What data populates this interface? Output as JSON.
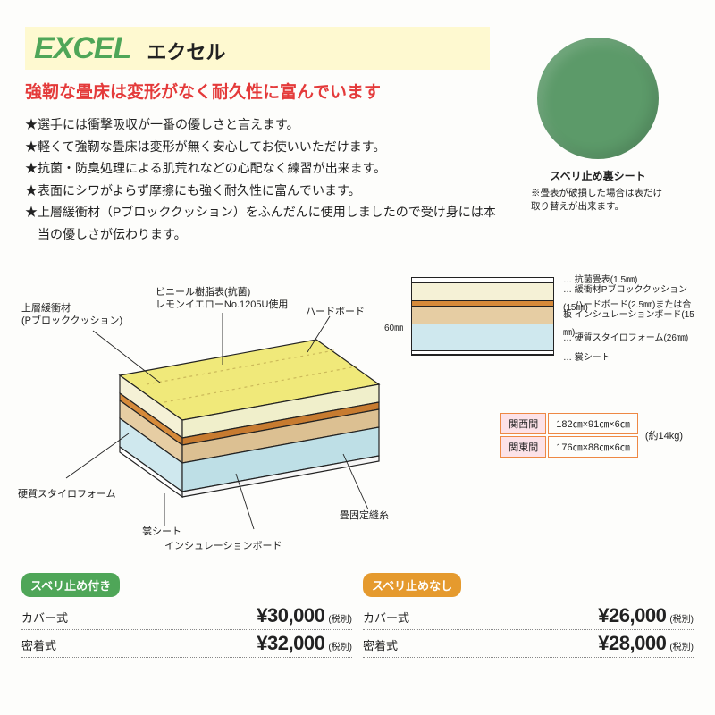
{
  "title": {
    "en": "EXCEL",
    "jp": "エクセル"
  },
  "headline": "強靭な畳床は変形がなく耐久性に富んでいます",
  "bullets": [
    "★選手には衝撃吸収が一番の優しさと言えます。",
    "★軽くて強靭な畳床は変形が無く安心してお使いいただけます。",
    "★抗菌・防臭処理による肌荒れなどの心配なく練習が出来ます。",
    "★表面にシワがよらず摩擦にも強く耐久性に富んでいます。",
    "★上層緩衝材（Pブロッククッション）をふんだんに使用しましたので受け身には本当の優しさが伝わります。"
  ],
  "swatch": {
    "label": "スベリ止め裏シート",
    "note": "※畳表が破損した場合は表だけ取り替えが出来ます。",
    "color": "#5c9a69"
  },
  "cutaway": {
    "labels": {
      "top_layer": "上層緩衝材\n(Pブロッククッション)",
      "vinyl": "ビニール樹脂表(抗菌)\nレモンイエローNo.1205U使用",
      "hardboard": "ハードボード",
      "styro": "硬質スタイロフォーム",
      "back": "裳シート",
      "insul": "インシュレーションボード",
      "thread": "畳固定縫糸"
    },
    "colors": {
      "surface": "#f0e97a",
      "cushion": "#f5f1d6",
      "hard": "#d68a3a",
      "insul": "#e6cda3",
      "styro": "#cfe8ee",
      "back": "#ffffff",
      "outline": "#222"
    }
  },
  "layerbox": {
    "height_label": "60㎜",
    "rows": [
      {
        "h": 6,
        "color": "#ffffff",
        "label": "抗菌畳表(1.5㎜)"
      },
      {
        "h": 20,
        "color": "#f5f1d6",
        "label": "緩衝材Pブロッククッション(15㎜)"
      },
      {
        "h": 6,
        "color": "#d68a3a",
        "label": "ハードボード(2.5㎜)または合板"
      },
      {
        "h": 20,
        "color": "#e6cda3",
        "label": "インシュレーションボード(15㎜)"
      },
      {
        "h": 30,
        "color": "#cfe8ee",
        "label": "硬質スタイロフォーム(26㎜)"
      },
      {
        "h": 4,
        "color": "#ffffff",
        "label": "裳シート"
      }
    ]
  },
  "sizes": {
    "kansai": {
      "name": "関西間",
      "spec": "182㎝×91㎝×6㎝"
    },
    "kanto": {
      "name": "関東間",
      "spec": "176㎝×88㎝×6㎝"
    },
    "weight": "(約14kg)"
  },
  "pricing": {
    "tax_note": "(税別)",
    "with": {
      "header": "スベリ止め付き",
      "cover_label": "カバー式",
      "cover": "¥30,000",
      "seal_label": "密着式",
      "seal": "¥32,000"
    },
    "without": {
      "header": "スベリ止めなし",
      "cover_label": "カバー式",
      "cover": "¥26,000",
      "seal_label": "密着式",
      "seal": "¥28,000"
    }
  }
}
